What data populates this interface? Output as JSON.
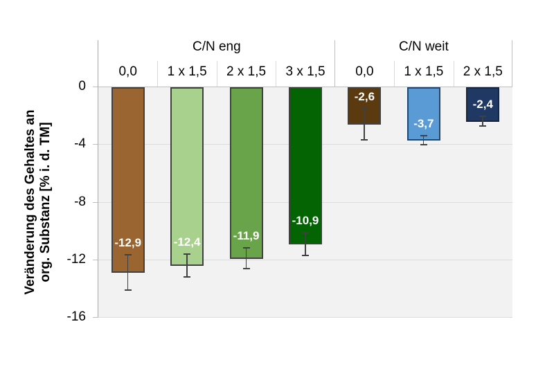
{
  "chart_data": {
    "type": "bar",
    "title": "",
    "ylabel_line1": "Veränderung des Gehaltes an",
    "ylabel_line2": "org. Substanz [% i. d. TM]",
    "ylim": [
      -16,
      0
    ],
    "yticks": [
      {
        "value": 0,
        "label": "0"
      },
      {
        "value": -4,
        "label": "-4"
      },
      {
        "value": -8,
        "label": "-8"
      },
      {
        "value": -12,
        "label": "-12"
      },
      {
        "value": -16,
        "label": "-16"
      }
    ],
    "grid": true,
    "legend": "none",
    "groups": [
      {
        "label": "C/N eng",
        "bars": [
          {
            "category": "0,0",
            "value": -12.9,
            "value_label": "-12,9",
            "error": 1.25,
            "color": "#9a6530",
            "border": "#404040"
          },
          {
            "category": "1 x 1,5",
            "value": -12.4,
            "value_label": "-12,4",
            "error": 0.8,
            "color": "#a9d18e",
            "border": "#404040"
          },
          {
            "category": "2 x 1,5",
            "value": -11.9,
            "value_label": "-11,9",
            "error": 0.75,
            "color": "#6aa44a",
            "border": "#404040"
          },
          {
            "category": "3 x 1,5",
            "value": -10.9,
            "value_label": "-10,9",
            "error": 0.8,
            "color": "#046404",
            "border": "#404040"
          }
        ]
      },
      {
        "label": "C/N weit",
        "bars": [
          {
            "category": "0,0",
            "value": -2.6,
            "value_label": "-2,6",
            "error": 1.1,
            "color": "#5b3a10",
            "border": "#404040"
          },
          {
            "category": "1 x 1,5",
            "value": -3.7,
            "value_label": "-3,7",
            "error": 0.35,
            "color": "#5b9bd5",
            "border": "#24466e"
          },
          {
            "category": "2 x 1,5",
            "value": -2.4,
            "value_label": "-2,4",
            "error": 0.36,
            "color": "#203864",
            "border": "#17263f"
          }
        ]
      }
    ],
    "colors": {
      "plot_background": "#f2f2f2",
      "gridline": "#dcdcdc",
      "zero_line": "#bfbfbf",
      "axis_line": "#a6a6a6",
      "group_separator": "#bfbfbf",
      "category_separator": "#d9d9d9",
      "error_bar": "#404040",
      "value_label_text": "#ffffff"
    }
  }
}
